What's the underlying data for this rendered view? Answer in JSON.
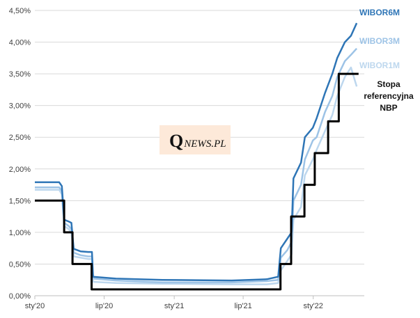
{
  "chart_data": {
    "type": "line",
    "title": "",
    "xlabel": "",
    "ylabel": "",
    "y_unit": "%",
    "ylim": [
      0,
      4.5
    ],
    "y_ticks": [
      {
        "value": 0.0,
        "label": "0,00%"
      },
      {
        "value": 0.5,
        "label": "0,50%"
      },
      {
        "value": 1.0,
        "label": "1,00%"
      },
      {
        "value": 1.5,
        "label": "1,50%"
      },
      {
        "value": 2.0,
        "label": "2,00%"
      },
      {
        "value": 2.5,
        "label": "2,50%"
      },
      {
        "value": 3.0,
        "label": "3,00%"
      },
      {
        "value": 3.5,
        "label": "3,50%"
      },
      {
        "value": 4.0,
        "label": "4,00%"
      },
      {
        "value": 4.5,
        "label": "4,50%"
      }
    ],
    "xlim": [
      "2020-01-01",
      "2022-05-15"
    ],
    "x_ticks": [
      {
        "value": "2020-01-01",
        "label": "sty'20"
      },
      {
        "value": "2020-07-01",
        "label": "lip'20"
      },
      {
        "value": "2021-01-01",
        "label": "sty'21"
      },
      {
        "value": "2021-07-01",
        "label": "lip'21"
      },
      {
        "value": "2022-01-01",
        "label": "sty'22"
      }
    ],
    "grid": "horizontal",
    "series": [
      {
        "name": "WIBOR1M",
        "color": "#bdd7ee",
        "points": [
          [
            "2020-01-01",
            1.67
          ],
          [
            "2020-03-05",
            1.67
          ],
          [
            "2020-03-12",
            1.6
          ],
          [
            "2020-03-18",
            1.1
          ],
          [
            "2020-03-30",
            1.05
          ],
          [
            "2020-04-06",
            1.0
          ],
          [
            "2020-04-12",
            0.62
          ],
          [
            "2020-04-30",
            0.6
          ],
          [
            "2020-05-20",
            0.58
          ],
          [
            "2020-05-30",
            0.58
          ],
          [
            "2020-06-02",
            0.22
          ],
          [
            "2020-08-01",
            0.2
          ],
          [
            "2020-12-01",
            0.19
          ],
          [
            "2021-06-01",
            0.18
          ],
          [
            "2021-09-01",
            0.18
          ],
          [
            "2021-10-01",
            0.2
          ],
          [
            "2021-10-08",
            0.4
          ],
          [
            "2021-10-25",
            0.55
          ],
          [
            "2021-11-05",
            0.65
          ],
          [
            "2021-11-10",
            1.2
          ],
          [
            "2021-11-30",
            1.4
          ],
          [
            "2021-12-10",
            1.9
          ],
          [
            "2021-12-31",
            2.15
          ],
          [
            "2022-01-10",
            2.3
          ],
          [
            "2022-02-01",
            2.6
          ],
          [
            "2022-02-20",
            2.85
          ],
          [
            "2022-03-05",
            3.15
          ],
          [
            "2022-03-25",
            3.45
          ],
          [
            "2022-04-10",
            3.6
          ],
          [
            "2022-04-25",
            3.3
          ]
        ]
      },
      {
        "name": "WIBOR3M",
        "color": "#9dc3e6",
        "points": [
          [
            "2020-01-01",
            1.71
          ],
          [
            "2020-03-05",
            1.71
          ],
          [
            "2020-03-12",
            1.65
          ],
          [
            "2020-03-18",
            1.15
          ],
          [
            "2020-03-30",
            1.1
          ],
          [
            "2020-04-06",
            1.05
          ],
          [
            "2020-04-12",
            0.68
          ],
          [
            "2020-04-30",
            0.64
          ],
          [
            "2020-05-20",
            0.62
          ],
          [
            "2020-05-30",
            0.62
          ],
          [
            "2020-06-02",
            0.27
          ],
          [
            "2020-08-01",
            0.24
          ],
          [
            "2020-12-01",
            0.21
          ],
          [
            "2021-06-01",
            0.21
          ],
          [
            "2021-09-01",
            0.23
          ],
          [
            "2021-10-01",
            0.25
          ],
          [
            "2021-10-08",
            0.6
          ],
          [
            "2021-10-25",
            0.72
          ],
          [
            "2021-11-05",
            0.85
          ],
          [
            "2021-11-10",
            1.5
          ],
          [
            "2021-11-30",
            1.75
          ],
          [
            "2021-12-10",
            2.15
          ],
          [
            "2021-12-31",
            2.45
          ],
          [
            "2022-01-10",
            2.5
          ],
          [
            "2022-02-01",
            2.9
          ],
          [
            "2022-02-20",
            3.15
          ],
          [
            "2022-03-05",
            3.45
          ],
          [
            "2022-03-25",
            3.7
          ],
          [
            "2022-04-10",
            3.8
          ],
          [
            "2022-04-25",
            3.9
          ]
        ]
      },
      {
        "name": "WIBOR6M",
        "color": "#2e75b6",
        "points": [
          [
            "2020-01-01",
            1.79
          ],
          [
            "2020-03-05",
            1.79
          ],
          [
            "2020-03-12",
            1.73
          ],
          [
            "2020-03-18",
            1.2
          ],
          [
            "2020-03-30",
            1.17
          ],
          [
            "2020-04-06",
            1.15
          ],
          [
            "2020-04-12",
            0.74
          ],
          [
            "2020-04-30",
            0.7
          ],
          [
            "2020-05-20",
            0.69
          ],
          [
            "2020-05-30",
            0.69
          ],
          [
            "2020-06-02",
            0.3
          ],
          [
            "2020-08-01",
            0.27
          ],
          [
            "2020-12-01",
            0.25
          ],
          [
            "2021-06-01",
            0.24
          ],
          [
            "2021-09-01",
            0.26
          ],
          [
            "2021-10-01",
            0.3
          ],
          [
            "2021-10-08",
            0.75
          ],
          [
            "2021-10-25",
            0.9
          ],
          [
            "2021-11-05",
            1.0
          ],
          [
            "2021-11-10",
            1.85
          ],
          [
            "2021-11-30",
            2.1
          ],
          [
            "2021-12-10",
            2.5
          ],
          [
            "2021-12-31",
            2.65
          ],
          [
            "2022-01-10",
            2.8
          ],
          [
            "2022-02-01",
            3.2
          ],
          [
            "2022-02-20",
            3.5
          ],
          [
            "2022-03-05",
            3.75
          ],
          [
            "2022-03-25",
            4.0
          ],
          [
            "2022-04-10",
            4.1
          ],
          [
            "2022-04-25",
            4.3
          ]
        ]
      },
      {
        "name": "Stopa referencyjna NBP",
        "name_lines": [
          "Stopa",
          "referencyjna",
          "NBP"
        ],
        "color": "#000000",
        "step": true,
        "points": [
          [
            "2020-01-01",
            1.5
          ],
          [
            "2020-03-18",
            1.0
          ],
          [
            "2020-04-09",
            0.5
          ],
          [
            "2020-05-29",
            0.1
          ],
          [
            "2021-10-07",
            0.5
          ],
          [
            "2021-11-04",
            1.25
          ],
          [
            "2021-12-09",
            1.75
          ],
          [
            "2022-01-05",
            2.25
          ],
          [
            "2022-02-09",
            2.75
          ],
          [
            "2022-03-09",
            3.5
          ],
          [
            "2022-04-30",
            3.5
          ]
        ]
      }
    ]
  },
  "watermark": {
    "first_letter": "Q",
    "rest": "NEWS.PL"
  }
}
